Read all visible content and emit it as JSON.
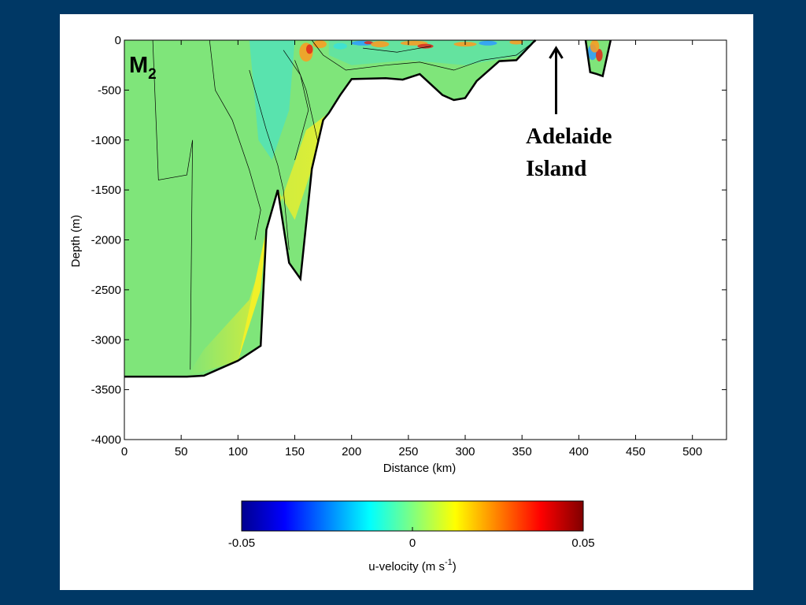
{
  "slide": {
    "background": "#003865",
    "panel_background": "#ffffff"
  },
  "chart_data": {
    "type": "heatmap",
    "title": "M",
    "title_subscript": "2",
    "xlabel": "Distance (km)",
    "ylabel": "Depth (m)",
    "xlim": [
      0,
      530
    ],
    "ylim": [
      -4000,
      0
    ],
    "xticks": [
      0,
      50,
      100,
      150,
      200,
      250,
      300,
      350,
      400,
      450,
      500
    ],
    "yticks": [
      0,
      -500,
      -1000,
      -1500,
      -2000,
      -2500,
      -3000,
      -3500,
      -4000
    ],
    "grid": false,
    "bathymetry": {
      "x": [
        0,
        55,
        70,
        90,
        100,
        120,
        125,
        135,
        145,
        155,
        165,
        175,
        180,
        190,
        200,
        230,
        245,
        260,
        280,
        290,
        300,
        310,
        330,
        345,
        360,
        362
      ],
      "depth": [
        -3370,
        -3370,
        -3360,
        -3260,
        -3210,
        -3060,
        -1900,
        -1500,
        -2230,
        -2390,
        -1290,
        -800,
        -730,
        -550,
        -390,
        -380,
        -395,
        -340,
        -550,
        -600,
        -580,
        -410,
        -210,
        -200,
        -20,
        0
      ]
    },
    "island_gap_km": [
      362,
      406
    ],
    "trench": {
      "x": [
        406,
        410,
        416,
        421,
        428
      ],
      "depth": [
        0,
        -320,
        -340,
        -360,
        0
      ]
    },
    "annotation": {
      "text_line1": "Adelaide",
      "text_line2": "Island",
      "x_km": 380
    },
    "colorbar": {
      "label": "u-velocity (m s",
      "label_superscript": "-1",
      "label_close": ")",
      "min": -0.05,
      "max": 0.05,
      "ticks": [
        "-0.05",
        "0",
        "0.05"
      ],
      "colormap": "jet",
      "colors": [
        "#00008f",
        "#0000ff",
        "#0080ff",
        "#00ffff",
        "#80ff80",
        "#ffff00",
        "#ff8000",
        "#ff0000",
        "#800000"
      ]
    },
    "field_colors": {
      "background": "#7fe57a",
      "slope_warm": "#d3ec3a",
      "slope_yellow": "#f1f029",
      "cyan": "#3be2d8",
      "blue": "#2e9bff",
      "orange": "#ff9a1e",
      "red": "#e0261a"
    }
  }
}
